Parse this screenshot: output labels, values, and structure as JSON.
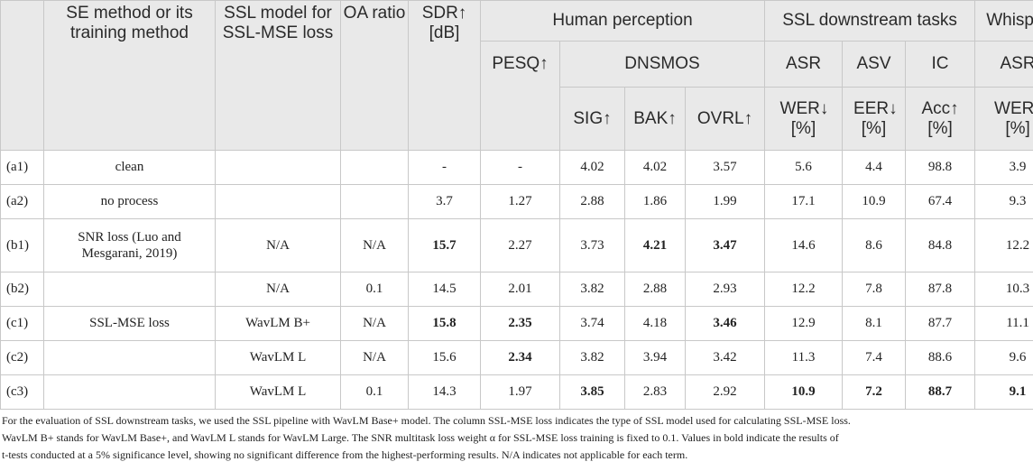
{
  "headers": {
    "se_method": "SE method or its training method",
    "ssl_model": "SSL model for SSL-MSE loss",
    "oa_ratio": "OA ratio",
    "sdr": "SDR↑ [dB]",
    "human_perception": "Human perception",
    "ssl_downstream": "SSL downstream tasks",
    "whisper": "Whisper",
    "pesq": "PESQ↑",
    "dnsmos": "DNSMOS",
    "asr": "ASR",
    "asv": "ASV",
    "ic": "IC",
    "whisper_asr": "ASR",
    "sig": "SIG↑",
    "bak": "BAK↑",
    "ovrl": "OVRL↑",
    "wer": "WER↓ [%]",
    "eer": "EER↓ [%]",
    "acc": "Acc↑ [%]",
    "whisper_wer": "WER↓ [%]"
  },
  "rows": [
    {
      "id": "(a1)",
      "method": "clean",
      "ssl": "",
      "oa": "",
      "sdr": "-",
      "pesq": "-",
      "sig": "4.02",
      "bak": "4.02",
      "ovrl": "3.57",
      "wer": "5.6",
      "eer": "4.4",
      "acc": "98.8",
      "wwer": "3.9"
    },
    {
      "id": "(a2)",
      "method": "no process",
      "ssl": "",
      "oa": "",
      "sdr": "3.7",
      "pesq": "1.27",
      "sig": "2.88",
      "bak": "1.86",
      "ovrl": "1.99",
      "wer": "17.1",
      "eer": "10.9",
      "acc": "67.4",
      "wwer": "9.3"
    },
    {
      "id": "(b1)",
      "method": "SNR loss (Luo and Mesgarani, 2019)",
      "ssl": "N/A",
      "oa": "N/A",
      "sdr": "15.7",
      "pesq": "2.27",
      "sig": "3.73",
      "bak": "4.21",
      "ovrl": "3.47",
      "wer": "14.6",
      "eer": "8.6",
      "acc": "84.8",
      "wwer": "12.2"
    },
    {
      "id": "(b2)",
      "method": "",
      "ssl": "N/A",
      "oa": "0.1",
      "sdr": "14.5",
      "pesq": "2.01",
      "sig": "3.82",
      "bak": "2.88",
      "ovrl": "2.93",
      "wer": "12.2",
      "eer": "7.8",
      "acc": "87.8",
      "wwer": "10.3"
    },
    {
      "id": "(c1)",
      "method": "SSL-MSE loss",
      "ssl": "WavLM B+",
      "oa": "N/A",
      "sdr": "15.8",
      "pesq": "2.35",
      "sig": "3.74",
      "bak": "4.18",
      "ovrl": "3.46",
      "wer": "12.9",
      "eer": "8.1",
      "acc": "87.7",
      "wwer": "11.1"
    },
    {
      "id": "(c2)",
      "method": "",
      "ssl": "WavLM L",
      "oa": "N/A",
      "sdr": "15.6",
      "pesq": "2.34",
      "sig": "3.82",
      "bak": "3.94",
      "ovrl": "3.42",
      "wer": "11.3",
      "eer": "7.4",
      "acc": "88.6",
      "wwer": "9.6"
    },
    {
      "id": "(c3)",
      "method": "",
      "ssl": "WavLM L",
      "oa": "0.1",
      "sdr": "14.3",
      "pesq": "1.97",
      "sig": "3.85",
      "bak": "2.83",
      "ovrl": "2.92",
      "wer": "10.9",
      "eer": "7.2",
      "acc": "88.7",
      "wwer": "9.1"
    }
  ],
  "footnote": {
    "line1": "For the evaluation of SSL downstream tasks, we used the SSL pipeline with WavLM Base+ model. The column SSL-MSE loss indicates the type of SSL model used for calculating SSL-MSE loss.",
    "line2": "WavLM B+ stands for WavLM Base+, and WavLM L stands for WavLM Large. The SNR multitask loss weight α for SSL-MSE loss training is fixed to 0.1. Values in bold indicate the results of",
    "line3": "t-tests conducted at a 5% significance level, showing no significant difference from the highest-performing results. N/A indicates not applicable for each term."
  }
}
